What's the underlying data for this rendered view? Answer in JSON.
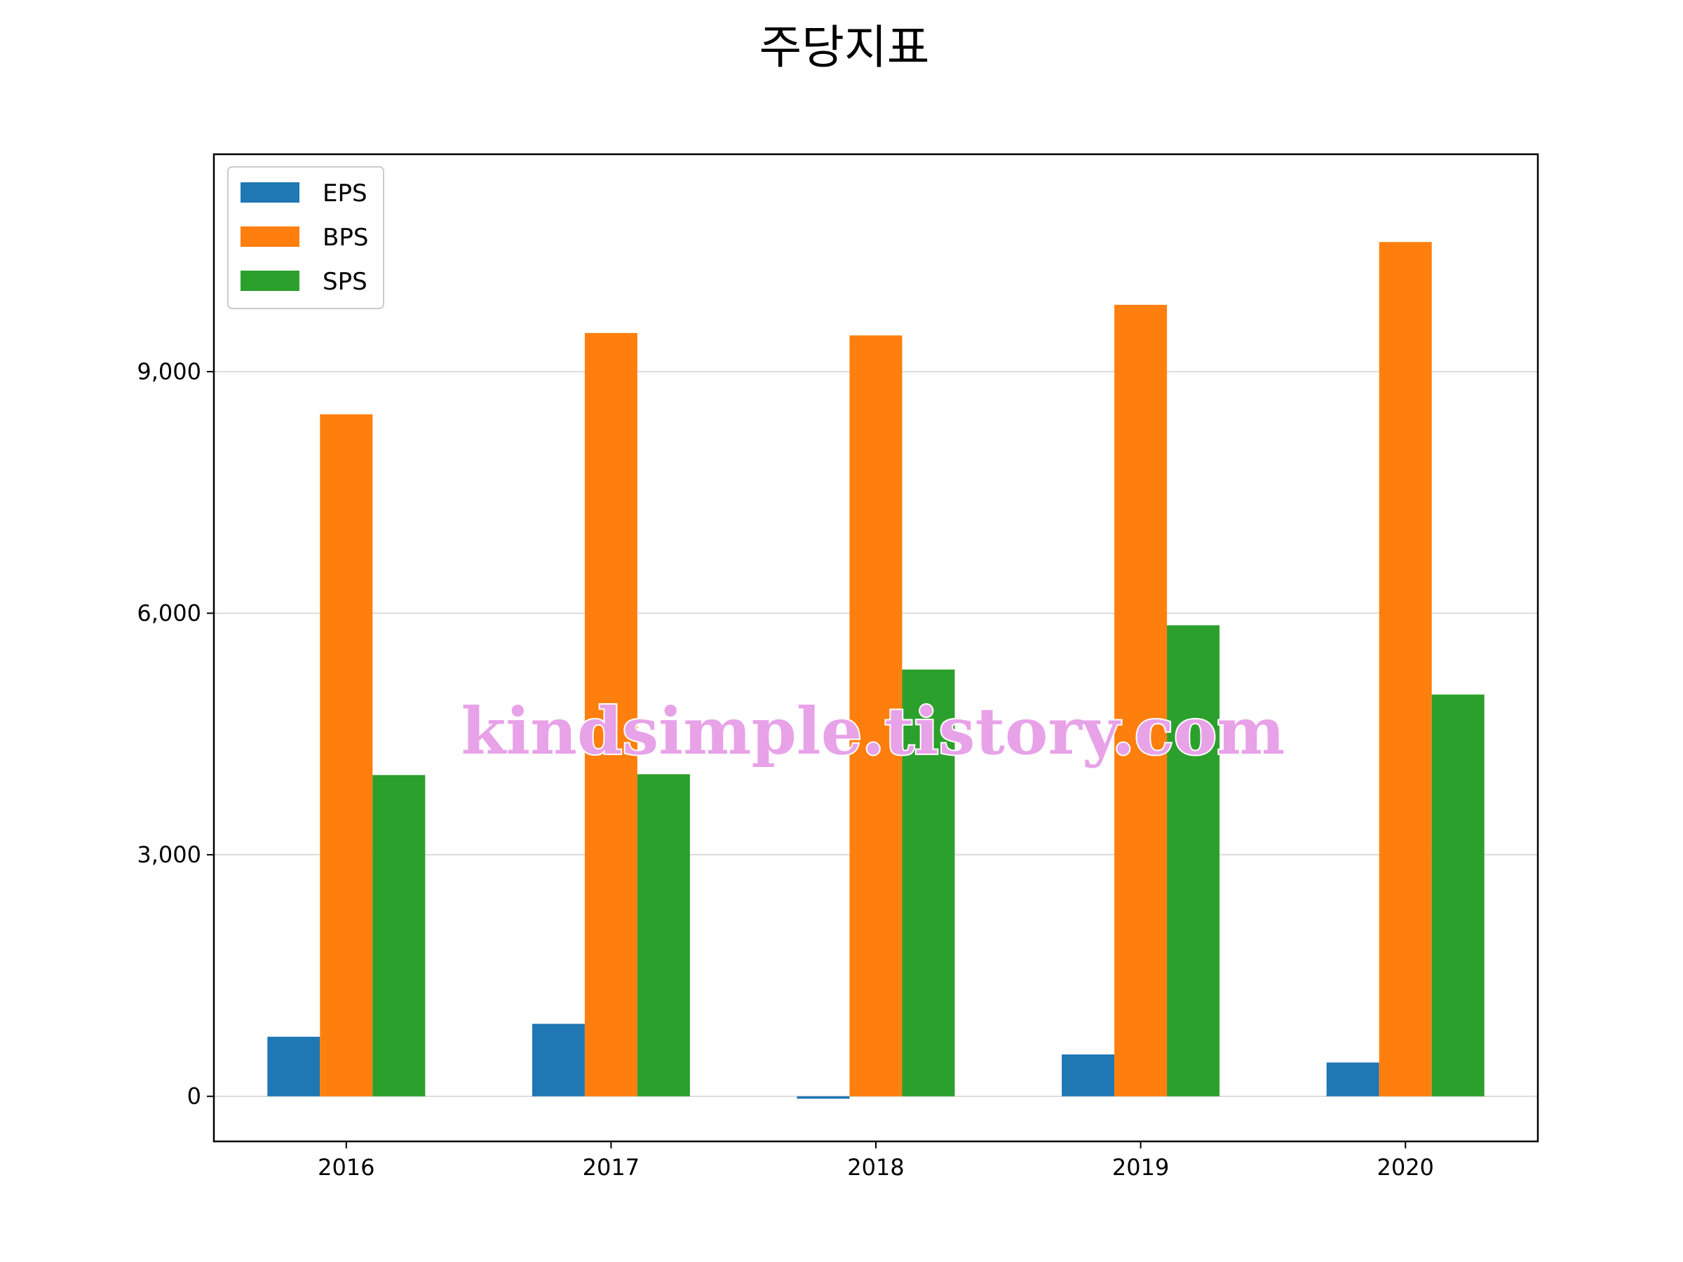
{
  "chart_data": {
    "type": "bar",
    "title": "주당지표",
    "xlabel": "",
    "ylabel": "",
    "categories": [
      "2016",
      "2017",
      "2018",
      "2019",
      "2020"
    ],
    "series": [
      {
        "name": "EPS",
        "color": "#1f77b4",
        "values": [
          740,
          900,
          -30,
          520,
          420
        ]
      },
      {
        "name": "BPS",
        "color": "#ff7f0e",
        "values": [
          8470,
          9480,
          9450,
          9830,
          10610
        ]
      },
      {
        "name": "SPS",
        "color": "#2ca02c",
        "values": [
          3990,
          4000,
          5300,
          5850,
          4990
        ]
      }
    ],
    "ylim": [
      -560,
      11700
    ],
    "yticks": [
      0,
      3000,
      6000,
      9000
    ],
    "ytick_labels": [
      "0",
      "3,000",
      "6,000",
      "9,000"
    ],
    "grid": "horizontal",
    "legend_position": "upper-left",
    "watermark": "kindsimple.tistory.com"
  }
}
